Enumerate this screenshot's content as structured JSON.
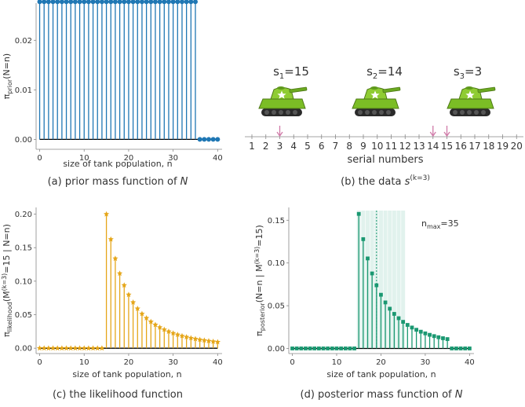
{
  "colors": {
    "prior": "#1f77b4",
    "likelihood": "#e5a619",
    "posterior": "#1a9871",
    "zero_line": "#000000",
    "arrow": "#d07aa8",
    "tank_body": "#7bbd25",
    "tank_dark": "#4f7a18",
    "tread": "#2a2a2a"
  },
  "chart_data": [
    {
      "id": "a",
      "type": "stem",
      "title": "(a) prior mass function of N",
      "xlabel": "size of tank population, n",
      "ylabel": "πprior(N=n)",
      "xlim": [
        -0.8,
        41
      ],
      "ylim": [
        -0.002,
        0.0275
      ],
      "xticks": [
        0,
        10,
        20,
        30,
        40
      ],
      "yticks": [
        0.0,
        0.01,
        0.02
      ],
      "ytick_labels": [
        "0.00",
        "0.01",
        "0.02"
      ],
      "marker": "circle",
      "support": [
        0,
        35
      ],
      "value": 0.02778,
      "n_max": 40
    },
    {
      "id": "c",
      "type": "stem",
      "title": "(c) the likelihood function",
      "xlabel": "size of tank population, n",
      "ylabel": "πlikelihood(M(k=3)=15 | N=n)",
      "xlim": [
        -0.8,
        41
      ],
      "ylim": [
        -0.008,
        0.21
      ],
      "xticks": [
        0,
        10,
        20,
        30,
        40
      ],
      "yticks": [
        0.0,
        0.05,
        0.1,
        0.15,
        0.2
      ],
      "ytick_labels": [
        "0.00",
        "0.05",
        "0.10",
        "0.15",
        "0.20"
      ],
      "marker": "star",
      "rule": "P(max=15|n) = C(14,2)/C(n,3) for n>=15",
      "n_max": 40
    },
    {
      "id": "d",
      "type": "stem",
      "title": "(d) posterior mass function of N",
      "xlabel": "size of tank population, n",
      "ylabel": "πposterior(N=n | M(k=3)=15)",
      "xlim": [
        -0.8,
        41
      ],
      "ylim": [
        -0.006,
        0.165
      ],
      "xticks": [
        0,
        10,
        20,
        30,
        40
      ],
      "yticks": [
        0.0,
        0.05,
        0.1,
        0.15
      ],
      "ytick_labels": [
        "0.00",
        "0.05",
        "0.10",
        "0.15"
      ],
      "marker": "square",
      "n_max_label": "nmax=35",
      "posterior_mean": 19,
      "credible_interval": [
        15,
        25
      ],
      "n_max": 40
    }
  ],
  "data_panel": {
    "title": "(b) the data s(k=3)",
    "axis_label": "serial numbers",
    "numbers": [
      "1",
      "2",
      "3",
      "4",
      "5",
      "6",
      "7",
      "8",
      "9",
      "10",
      "11",
      "12",
      "13",
      "14",
      "15",
      "16",
      "17",
      "18",
      "19",
      "20"
    ],
    "observed": [
      3,
      14,
      15
    ],
    "tanks": [
      {
        "label": "s1=15",
        "serial": 15
      },
      {
        "label": "s2=14",
        "serial": 14
      },
      {
        "label": "s3=3",
        "serial": 3
      }
    ]
  },
  "text": {
    "cap_a": "(a) prior mass function of ",
    "cap_b": "(b) the data ",
    "cap_c": "(c) the likelihood function",
    "cap_d": "(d) posterior mass function of ",
    "N": "N",
    "s": "s",
    "s_sup": "(k=3)",
    "xlabel": "size of tank population, n",
    "serial_numbers": "serial numbers",
    "ylab_a_main": "π",
    "ylab_a_sub": "prior",
    "ylab_a_tail": "(N=n)",
    "ylab_c_main": "π",
    "ylab_c_sub": "likelihood",
    "ylab_c_mid": "(M",
    "ylab_c_sup": "(k=3)",
    "ylab_c_tail": "=15 | N=n)",
    "ylab_d_main": "π",
    "ylab_d_sub": "posterior",
    "ylab_d_mid": "(N=n | M",
    "ylab_d_sup": "(k=3)",
    "ylab_d_tail": "=15)",
    "nmax_n": "n",
    "nmax_sub": "max",
    "nmax_val": "=35",
    "tank1_s": "s",
    "tank1_sub": "1",
    "tank1_val": "=15",
    "tank2_s": "s",
    "tank2_sub": "2",
    "tank2_val": "=14",
    "tank3_s": "s",
    "tank3_sub": "3",
    "tank3_val": "=3"
  }
}
